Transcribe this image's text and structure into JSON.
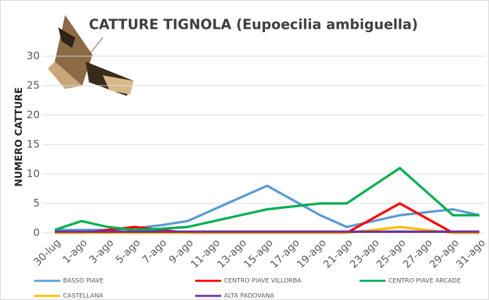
{
  "chart_data": {
    "type": "line",
    "title": "CATTURE TIGNOLA (Eupoecilia ambiguella)",
    "y_label": "NUMERO CATTURE",
    "categories": [
      "30-lug",
      "1-ago",
      "3-ago",
      "5-ago",
      "7-ago",
      "9-ago",
      "11-ago",
      "13-ago",
      "15-ago",
      "17-ago",
      "19-ago",
      "21-ago",
      "23-ago",
      "25-ago",
      "27-ago",
      "29-ago",
      "31-ago"
    ],
    "series": [
      {
        "name": "BASSO PIAVE",
        "color": "#5b9bd5",
        "values": [
          0.5,
          0.5,
          0.5,
          0.8,
          1.3,
          2,
          4,
          6,
          8,
          5.5,
          3,
          1,
          2,
          3,
          3.5,
          4,
          3
        ]
      },
      {
        "name": "CENTRO PIAVE VILLORBA",
        "color": "#ff0000",
        "values": [
          0,
          0,
          0.5,
          1,
          0.5,
          0,
          0,
          0,
          0,
          0,
          0,
          0,
          2.5,
          5,
          2.5,
          0,
          0
        ]
      },
      {
        "name": "CENTRO PIAVE ARCADE",
        "color": "#00b050",
        "values": [
          0.5,
          2,
          1,
          0.5,
          0.7,
          1,
          2,
          3,
          4,
          4.5,
          5,
          5,
          8,
          11,
          7,
          3,
          3
        ]
      },
      {
        "name": "CASTELLANA",
        "color": "#ffc000",
        "values": [
          0,
          0,
          0,
          0,
          0,
          0,
          0,
          0,
          0,
          0,
          0,
          0,
          0.5,
          1,
          0.5,
          0,
          0
        ]
      },
      {
        "name": "ALTA PADOVANA",
        "color": "#7030a0",
        "values": [
          0.2,
          0.2,
          0.2,
          0.2,
          0.2,
          0.2,
          0.2,
          0.2,
          0.2,
          0.2,
          0.2,
          0.2,
          0.2,
          0.2,
          0.2,
          0.2,
          0.2
        ]
      }
    ],
    "ylim": [
      0,
      35
    ],
    "yticks": [
      0,
      5,
      10,
      15,
      20,
      25,
      30
    ],
    "grid": true
  }
}
